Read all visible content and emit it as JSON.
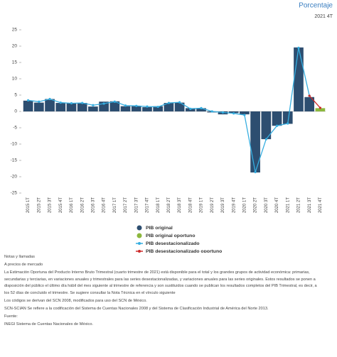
{
  "chart_data": {
    "type": "bar",
    "unit_label": "Porcentaje",
    "period_label": "2021 4T",
    "categories": [
      "2015 1T",
      "2015 2T",
      "2015 3T",
      "2015 4T",
      "2016 1T",
      "2016 2T",
      "2016 3T",
      "2016 4T",
      "2017 1T",
      "2017 2T",
      "2017 3T",
      "2017 4T",
      "2018 1T",
      "2018 2T",
      "2018 3T",
      "2018 4T",
      "2019 1T",
      "2019 2T",
      "2019 3T",
      "2019 4T",
      "2020 1T",
      "2020 2T",
      "2020 3T",
      "2020 4T",
      "2021 1T",
      "2021 2T",
      "2021 3T",
      "2021 4T"
    ],
    "series": [
      {
        "name": "PIB original",
        "kind": "bar",
        "color": "#2d4e70",
        "values": [
          3.3,
          2.7,
          3.8,
          2.6,
          2.6,
          2.6,
          1.5,
          3.0,
          3.1,
          1.6,
          1.6,
          1.3,
          1.6,
          2.6,
          2.7,
          1.0,
          1.0,
          -0.3,
          -0.9,
          -0.5,
          -0.9,
          -18.7,
          -8.5,
          -4.4,
          -3.8,
          19.6,
          4.4,
          null
        ]
      },
      {
        "name": "PIB original oportuno",
        "kind": "bar",
        "color": "#8cb73e",
        "values": [
          null,
          null,
          null,
          null,
          null,
          null,
          null,
          null,
          null,
          null,
          null,
          null,
          null,
          null,
          null,
          null,
          null,
          null,
          null,
          null,
          null,
          null,
          null,
          null,
          null,
          null,
          null,
          1.0
        ]
      },
      {
        "name": "PIB desestacionalizado",
        "kind": "line",
        "color": "#36aee0",
        "values": [
          3.4,
          3.0,
          3.8,
          2.7,
          2.5,
          2.6,
          1.9,
          2.4,
          3.0,
          1.8,
          1.7,
          1.5,
          1.4,
          2.6,
          2.8,
          0.8,
          1.0,
          0.0,
          -0.3,
          -0.6,
          -1.1,
          -18.6,
          -8.5,
          -4.4,
          -3.7,
          19.5,
          4.8,
          null
        ]
      },
      {
        "name": "PIB desestacionalizado oportuno",
        "kind": "line",
        "color": "#cc2a2a",
        "values": [
          null,
          null,
          null,
          null,
          null,
          null,
          null,
          null,
          null,
          null,
          null,
          null,
          null,
          null,
          null,
          null,
          null,
          null,
          null,
          null,
          null,
          null,
          null,
          null,
          null,
          null,
          4.8,
          1.1
        ]
      }
    ],
    "ylim": [
      -25,
      25
    ],
    "yticks": [
      -25,
      -20,
      -15,
      -10,
      -5,
      0,
      5,
      10,
      15,
      20,
      25
    ],
    "grid": false
  },
  "notes": [
    "Notas y llamadas",
    "A precios de mercado",
    "La Estimación Oportuna del Producto Interno Bruto Trimestral (cuarto trimestre de 2021) está disponible para el total y los grandes grupos de actividad económica: primarias, secundarias y terciarias, en variaciones anuales y trimestrales para las series desestacionalizadas, y variaciones anuales para las series originales. Estos resultados se ponen a disposición del público el último día hábil del mes siguiente al trimestre de referencia y son sustituidos cuando se publican los resultados completos del PIB Trimestral, es decir, a los 52 días de concluido el trimestre. Se sugiere consultar la Nota Técnica en el vínculo siguiente",
    "Los códigos se derivan del SCN 2008, modificados para uso del SCN de México.",
    "SCN-SCIAN Se refiere a la codificación del Sistema de Cuentas Nacionales 2008 y del Sistema de Clasificación Industrial de América del Norte 2013.",
    "Fuente:",
    "INEGI Sistema de Cuentas Nacionales de México."
  ]
}
